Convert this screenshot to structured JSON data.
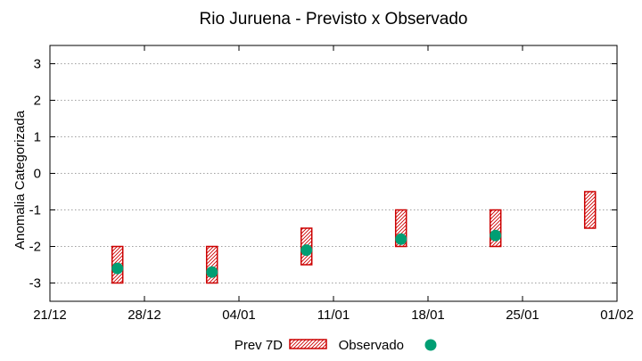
{
  "chart_data": {
    "type": "floating-bar+scatter",
    "title": "Rio Juruena - Previsto x Observado",
    "xlabel": "",
    "ylabel": "Anomalia Categorizada",
    "ylim": [
      -3.5,
      3.5
    ],
    "yticks": [
      3,
      2,
      1,
      0,
      -1,
      -2,
      -3
    ],
    "ytick_labels": [
      "3",
      "2",
      "1",
      "0",
      "-1",
      "-2",
      "-3"
    ],
    "xlim_days": [
      0,
      42
    ],
    "xticks_days": [
      0,
      7,
      14,
      21,
      28,
      35,
      42
    ],
    "xtick_labels": [
      "21/12",
      "28/12",
      "04/01",
      "11/01",
      "18/01",
      "25/01",
      "01/02"
    ],
    "grid": "horizontal-dotted",
    "legend_position": "bottom-center",
    "colors": {
      "forecast": "#cc0000",
      "observed": "#009e73",
      "grid": "#a0a0a0"
    },
    "series": [
      {
        "name": "Prev 7D",
        "kind": "range",
        "points": [
          {
            "x": 5,
            "low": -3.0,
            "high": -2.0
          },
          {
            "x": 12,
            "low": -3.0,
            "high": -2.0
          },
          {
            "x": 19,
            "low": -2.5,
            "high": -1.5
          },
          {
            "x": 26,
            "low": -2.0,
            "high": -1.0
          },
          {
            "x": 33,
            "low": -2.0,
            "high": -1.0
          },
          {
            "x": 40,
            "low": -1.5,
            "high": -0.5
          }
        ]
      },
      {
        "name": "Observado",
        "kind": "point",
        "points": [
          {
            "x": 5,
            "y": -2.6
          },
          {
            "x": 12,
            "y": -2.7
          },
          {
            "x": 19,
            "y": -2.1
          },
          {
            "x": 26,
            "y": -1.8
          },
          {
            "x": 33,
            "y": -1.7
          }
        ]
      }
    ]
  }
}
